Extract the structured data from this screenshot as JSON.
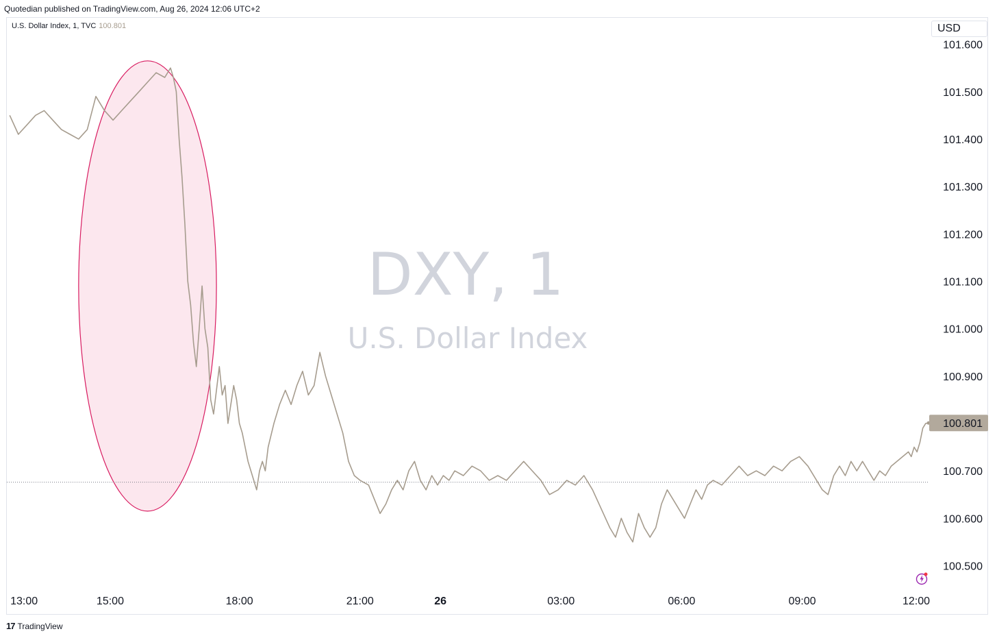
{
  "header": {
    "published_line": "Quotedian published on TradingView.com, Aug 26, 2024 12:06 UTC+2"
  },
  "legend": {
    "symbol_text": "U.S. Dollar Index, 1, TVC",
    "last_value": "100.801"
  },
  "price_scale": {
    "currency_label": "USD",
    "last_price_label": "100.801"
  },
  "watermark": {
    "symbol": "DXY, 1",
    "name": "U.S. Dollar Index"
  },
  "footer": {
    "brand": "TradingView",
    "logo_icon": "tradingview-logo-icon"
  },
  "colors": {
    "line": "#a69c8e",
    "ellipse_stroke": "#d81b60",
    "ellipse_fill": "#fce4ec",
    "watermark": "#d1d4dc",
    "last_price_bg": "#b2a99c"
  },
  "chart_data": {
    "type": "line",
    "title": "",
    "xlabel": "",
    "ylabel": "",
    "series": [
      {
        "points": [
          [
            0,
            101.45
          ],
          [
            3,
            101.41
          ],
          [
            6,
            101.43
          ],
          [
            9,
            101.45
          ],
          [
            12,
            101.46
          ],
          [
            15,
            101.44
          ],
          [
            18,
            101.42
          ],
          [
            21,
            101.41
          ],
          [
            24,
            101.4
          ],
          [
            27,
            101.42
          ],
          [
            30,
            101.49
          ],
          [
            33,
            101.46
          ],
          [
            36,
            101.44
          ],
          [
            39,
            101.46
          ],
          [
            42,
            101.48
          ],
          [
            45,
            101.5
          ],
          [
            48,
            101.52
          ],
          [
            51,
            101.54
          ],
          [
            54,
            101.53
          ],
          [
            56,
            101.55
          ],
          [
            57,
            101.53
          ],
          [
            58,
            101.5
          ],
          [
            59,
            101.4
          ],
          [
            60,
            101.32
          ],
          [
            61,
            101.22
          ],
          [
            62,
            101.1
          ],
          [
            63,
            101.05
          ],
          [
            64,
            100.97
          ],
          [
            65,
            100.92
          ],
          [
            66,
            101.0
          ],
          [
            67,
            101.09
          ],
          [
            68,
            101.0
          ],
          [
            69,
            100.96
          ],
          [
            70,
            100.85
          ],
          [
            71,
            100.82
          ],
          [
            72,
            100.87
          ],
          [
            73,
            100.92
          ],
          [
            74,
            100.86
          ],
          [
            75,
            100.88
          ],
          [
            76,
            100.8
          ],
          [
            77,
            100.84
          ],
          [
            78,
            100.88
          ],
          [
            79,
            100.85
          ],
          [
            80,
            100.8
          ],
          [
            81,
            100.78
          ],
          [
            82,
            100.75
          ],
          [
            83,
            100.72
          ],
          [
            84,
            100.7
          ],
          [
            85,
            100.68
          ],
          [
            86,
            100.66
          ],
          [
            87,
            100.7
          ],
          [
            88,
            100.72
          ],
          [
            89,
            100.7
          ],
          [
            90,
            100.75
          ],
          [
            92,
            100.8
          ],
          [
            94,
            100.84
          ],
          [
            96,
            100.87
          ],
          [
            98,
            100.84
          ],
          [
            100,
            100.88
          ],
          [
            102,
            100.91
          ],
          [
            104,
            100.86
          ],
          [
            106,
            100.88
          ],
          [
            108,
            100.95
          ],
          [
            110,
            100.9
          ],
          [
            112,
            100.86
          ],
          [
            114,
            100.82
          ],
          [
            116,
            100.78
          ],
          [
            118,
            100.72
          ],
          [
            120,
            100.69
          ],
          [
            122,
            100.68
          ],
          [
            125,
            100.67
          ],
          [
            127,
            100.64
          ],
          [
            129,
            100.61
          ],
          [
            131,
            100.63
          ],
          [
            133,
            100.66
          ],
          [
            135,
            100.68
          ],
          [
            137,
            100.66
          ],
          [
            139,
            100.7
          ],
          [
            141,
            100.72
          ],
          [
            143,
            100.68
          ],
          [
            145,
            100.66
          ],
          [
            147,
            100.69
          ],
          [
            149,
            100.67
          ],
          [
            151,
            100.69
          ],
          [
            153,
            100.68
          ],
          [
            155,
            100.7
          ],
          [
            158,
            100.69
          ],
          [
            161,
            100.71
          ],
          [
            164,
            100.7
          ],
          [
            167,
            100.68
          ],
          [
            170,
            100.69
          ],
          [
            173,
            100.68
          ],
          [
            176,
            100.7
          ],
          [
            179,
            100.72
          ],
          [
            182,
            100.7
          ],
          [
            185,
            100.68
          ],
          [
            188,
            100.65
          ],
          [
            191,
            100.66
          ],
          [
            194,
            100.68
          ],
          [
            197,
            100.67
          ],
          [
            200,
            100.69
          ],
          [
            203,
            100.66
          ],
          [
            206,
            100.62
          ],
          [
            209,
            100.58
          ],
          [
            211,
            100.56
          ],
          [
            213,
            100.6
          ],
          [
            215,
            100.57
          ],
          [
            217,
            100.55
          ],
          [
            219,
            100.61
          ],
          [
            221,
            100.58
          ],
          [
            223,
            100.56
          ],
          [
            225,
            100.58
          ],
          [
            227,
            100.63
          ],
          [
            229,
            100.66
          ],
          [
            231,
            100.64
          ],
          [
            233,
            100.62
          ],
          [
            235,
            100.6
          ],
          [
            237,
            100.63
          ],
          [
            239,
            100.66
          ],
          [
            241,
            100.64
          ],
          [
            243,
            100.67
          ],
          [
            245,
            100.68
          ],
          [
            248,
            100.67
          ],
          [
            251,
            100.69
          ],
          [
            254,
            100.71
          ],
          [
            257,
            100.69
          ],
          [
            260,
            100.7
          ],
          [
            263,
            100.69
          ],
          [
            266,
            100.71
          ],
          [
            269,
            100.7
          ],
          [
            272,
            100.72
          ],
          [
            275,
            100.73
          ],
          [
            278,
            100.71
          ],
          [
            281,
            100.68
          ],
          [
            283,
            100.66
          ],
          [
            285,
            100.65
          ],
          [
            287,
            100.69
          ],
          [
            289,
            100.71
          ],
          [
            291,
            100.69
          ],
          [
            293,
            100.72
          ],
          [
            295,
            100.7
          ],
          [
            297,
            100.72
          ],
          [
            299,
            100.7
          ],
          [
            301,
            100.68
          ],
          [
            303,
            100.7
          ],
          [
            305,
            100.69
          ],
          [
            307,
            100.71
          ],
          [
            309,
            100.72
          ],
          [
            311,
            100.73
          ],
          [
            313,
            100.74
          ],
          [
            314,
            100.73
          ],
          [
            315,
            100.75
          ],
          [
            316,
            100.74
          ],
          [
            317,
            100.76
          ],
          [
            318,
            100.79
          ],
          [
            319,
            100.8
          ],
          [
            320,
            100.801
          ]
        ]
      }
    ],
    "x_ticks": [
      {
        "label": "13:00",
        "x": 5
      },
      {
        "label": "15:00",
        "x": 35
      },
      {
        "label": "18:00",
        "x": 80
      },
      {
        "label": "21:00",
        "x": 122
      },
      {
        "label": "26",
        "x": 150
      },
      {
        "label": "03:00",
        "x": 192
      },
      {
        "label": "06:00",
        "x": 234
      },
      {
        "label": "09:00",
        "x": 276
      },
      {
        "label": "12:00",
        "x": 319
      }
    ],
    "y_ticks": [
      "101.600",
      "101.500",
      "101.400",
      "101.300",
      "101.200",
      "101.100",
      "101.000",
      "100.900",
      "100.800",
      "100.700",
      "100.600",
      "100.500"
    ],
    "xlim": [
      -1,
      320
    ],
    "ylim": [
      100.45,
      101.65
    ],
    "reference_line": 100.676,
    "highlight": {
      "x_center": 48,
      "y_center": 101.09,
      "x_radius": 24,
      "y_radius": 0.475
    },
    "grid": false,
    "legend": "top-left"
  }
}
